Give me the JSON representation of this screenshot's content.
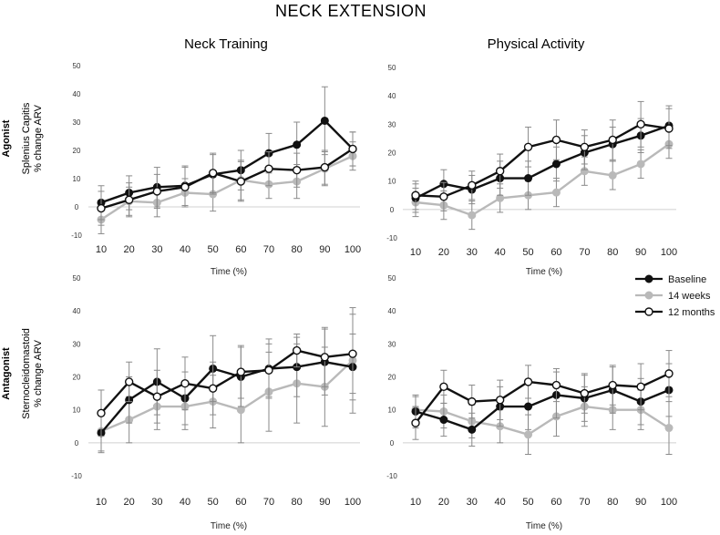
{
  "figure": {
    "title": "NECK EXTENSION",
    "columns": [
      "Neck Training",
      "Physical Activity"
    ],
    "rows": [
      {
        "label": "Agonist",
        "ylabel": [
          "Splenius Capitis",
          "% change ARV"
        ]
      },
      {
        "label": "Antagonist",
        "ylabel": [
          "Sternocleidomastoid",
          "% change ARV"
        ]
      }
    ],
    "colors": {
      "baseline": "#111111",
      "w14": "#b9b9b9",
      "m12": "#111111",
      "error": "#8a8a8a"
    }
  },
  "legend": {
    "placement": "right-middle",
    "entries": [
      "Baseline",
      "14 weeks",
      "12 months"
    ]
  },
  "chart_data": [
    {
      "type": "line",
      "panel": "top-left",
      "title": "Neck Training",
      "ylabel": "Splenius Capitis % change ARV",
      "xlabel": "Time (%)",
      "x": [
        10,
        20,
        30,
        40,
        50,
        60,
        70,
        80,
        90,
        100
      ],
      "xticks": [
        10,
        20,
        30,
        40,
        50,
        60,
        70,
        80,
        90,
        100
      ],
      "ylim": [
        -10,
        50
      ],
      "yticks": [
        -10,
        0,
        10,
        20,
        30,
        40,
        50
      ],
      "series": [
        {
          "name": "Baseline",
          "marker": "filled",
          "values": [
            1.5,
            5,
            7,
            7.5,
            11.5,
            13,
            19,
            22,
            30.5,
            20.5
          ],
          "errors": [
            6,
            6,
            7,
            7,
            7,
            7,
            7,
            8,
            12,
            6
          ]
        },
        {
          "name": "14 weeks",
          "marker": "grey",
          "values": [
            -4.5,
            2,
            1.5,
            5,
            4.5,
            9.5,
            8,
            9,
            13.5,
            18
          ],
          "errors": [
            5,
            5,
            5,
            5,
            6,
            7,
            5,
            6,
            6,
            5
          ]
        },
        {
          "name": "12 months",
          "marker": "open",
          "values": [
            -0.5,
            2.5,
            5.5,
            7,
            12,
            9,
            13.5,
            13,
            14,
            20.5
          ],
          "errors": [
            6,
            6,
            6,
            7,
            7,
            7,
            6,
            6,
            6,
            6
          ]
        }
      ]
    },
    {
      "type": "line",
      "panel": "top-right",
      "title": "Physical Activity",
      "ylabel": "Splenius Capitis % change ARV",
      "xlabel": "Time (%)",
      "x": [
        10,
        20,
        30,
        40,
        50,
        60,
        70,
        80,
        90,
        100
      ],
      "xticks": [
        10,
        20,
        30,
        40,
        50,
        60,
        70,
        80,
        90,
        100
      ],
      "ylim": [
        -10,
        50
      ],
      "yticks": [
        -10,
        0,
        10,
        20,
        30,
        40,
        50
      ],
      "series": [
        {
          "name": "Baseline",
          "marker": "filled",
          "values": [
            4,
            9,
            7,
            11,
            11,
            16,
            20,
            23,
            26,
            29.5
          ],
          "errors": [
            5,
            5,
            5,
            6,
            6,
            6,
            6,
            6,
            6,
            7
          ]
        },
        {
          "name": "14 weeks",
          "marker": "grey",
          "values": [
            2.5,
            1.5,
            -2,
            4,
            5,
            6,
            13.5,
            12,
            16,
            23
          ],
          "errors": [
            5,
            5,
            5,
            5,
            5,
            5,
            5,
            5,
            5,
            5
          ]
        },
        {
          "name": "12 months",
          "marker": "open",
          "values": [
            5,
            4.5,
            8.5,
            13.5,
            22,
            24.5,
            22,
            24.5,
            30,
            28.5
          ],
          "errors": [
            5,
            5,
            5,
            6,
            7,
            7,
            6,
            7,
            8,
            7
          ]
        }
      ]
    },
    {
      "type": "line",
      "panel": "bottom-left",
      "title": "Neck Training",
      "ylabel": "Sternocleidomastoid % change ARV",
      "xlabel": "Time (%)",
      "x": [
        10,
        20,
        30,
        40,
        50,
        60,
        70,
        80,
        90,
        100
      ],
      "xticks": [
        10,
        20,
        30,
        40,
        50,
        60,
        70,
        80,
        90,
        100
      ],
      "ylim": [
        -10,
        50
      ],
      "yticks": [
        -10,
        0,
        10,
        20,
        30,
        40,
        50
      ],
      "series": [
        {
          "name": "Baseline",
          "marker": "filled",
          "values": [
            3,
            13,
            18.5,
            13.5,
            22.5,
            20,
            22.5,
            23,
            24.5,
            23
          ],
          "errors": [
            6,
            7,
            10,
            8,
            10,
            9,
            9,
            9,
            10,
            10
          ]
        },
        {
          "name": "14 weeks",
          "marker": "grey",
          "values": [
            3.5,
            7,
            11,
            11,
            12.5,
            10,
            15.5,
            18,
            17,
            25
          ],
          "errors": [
            6,
            7,
            7,
            7,
            8,
            10,
            12,
            12,
            12,
            16
          ]
        },
        {
          "name": "12 months",
          "marker": "open",
          "values": [
            9,
            18.5,
            14,
            18,
            16.5,
            21.5,
            22,
            28,
            26,
            27
          ],
          "errors": [
            7,
            6,
            8,
            8,
            8,
            8,
            8,
            5,
            9,
            12
          ]
        }
      ]
    },
    {
      "type": "line",
      "panel": "bottom-right",
      "title": "Physical Activity",
      "ylabel": "Sternocleidomastoid % change ARV",
      "xlabel": "Time (%)",
      "x": [
        10,
        20,
        30,
        40,
        50,
        60,
        70,
        80,
        90,
        100
      ],
      "xticks": [
        10,
        20,
        30,
        40,
        50,
        60,
        70,
        80,
        90,
        100
      ],
      "ylim": [
        -10,
        50
      ],
      "yticks": [
        -10,
        0,
        10,
        20,
        30,
        40,
        50
      ],
      "series": [
        {
          "name": "Baseline",
          "marker": "filled",
          "values": [
            9.5,
            7,
            4,
            11,
            11,
            14.5,
            13.5,
            16,
            12.5,
            16
          ],
          "errors": [
            5,
            5,
            5,
            6,
            7,
            7,
            7,
            7,
            7,
            8
          ]
        },
        {
          "name": "14 weeks",
          "marker": "grey",
          "values": [
            10,
            9.5,
            6.5,
            5,
            2.5,
            8,
            11,
            10,
            10,
            4.5
          ],
          "errors": [
            4,
            5,
            5,
            5,
            6,
            6,
            6,
            6,
            6,
            8
          ]
        },
        {
          "name": "12 months",
          "marker": "open",
          "values": [
            6,
            17,
            12.5,
            13,
            18.5,
            17.5,
            15,
            17.5,
            17,
            21
          ],
          "errors": [
            5,
            5,
            5,
            6,
            5,
            5,
            6,
            6,
            7,
            7
          ]
        }
      ]
    }
  ]
}
